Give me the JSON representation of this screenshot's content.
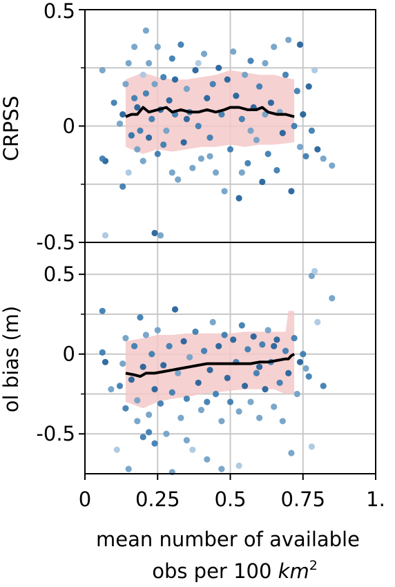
{
  "chart_data": [
    {
      "type": "scatter",
      "title": "",
      "ylabel": "CRPSS",
      "xlabel": "",
      "xlim": [
        0,
        1
      ],
      "ylim": [
        -0.5,
        0.5
      ],
      "y_ticks": [
        {
          "value": 0.5,
          "label": "0.5"
        },
        {
          "value": 0,
          "label": "0"
        },
        {
          "value": -0.5,
          "label": "-0.5"
        }
      ],
      "y_minor_ticks": [
        0.25,
        -0.25
      ],
      "grid": true,
      "band": {
        "x": [
          0.14,
          0.2,
          0.25,
          0.3,
          0.35,
          0.4,
          0.45,
          0.5,
          0.55,
          0.6,
          0.65,
          0.72
        ],
        "lower": [
          -0.09,
          -0.12,
          -0.1,
          -0.11,
          -0.1,
          -0.09,
          -0.09,
          -0.08,
          -0.09,
          -0.08,
          -0.08,
          -0.07
        ],
        "upper": [
          0.2,
          0.23,
          0.21,
          0.2,
          0.2,
          0.21,
          0.22,
          0.24,
          0.23,
          0.22,
          0.22,
          0.2
        ]
      },
      "median_line": {
        "x": [
          0.14,
          0.16,
          0.18,
          0.2,
          0.22,
          0.25,
          0.28,
          0.3,
          0.33,
          0.36,
          0.39,
          0.42,
          0.45,
          0.48,
          0.5,
          0.53,
          0.56,
          0.59,
          0.61,
          0.63,
          0.66,
          0.69,
          0.72
        ],
        "y": [
          0.04,
          0.05,
          0.05,
          0.08,
          0.06,
          0.07,
          0.08,
          0.06,
          0.07,
          0.06,
          0.06,
          0.07,
          0.06,
          0.07,
          0.08,
          0.08,
          0.07,
          0.07,
          0.08,
          0.06,
          0.05,
          0.05,
          0.04
        ]
      },
      "points": [
        {
          "x": 0.06,
          "y": 0.24,
          "s": 2
        },
        {
          "x": 0.07,
          "y": -0.15,
          "s": 4
        },
        {
          "x": 0.06,
          "y": -0.14,
          "s": 3
        },
        {
          "x": 0.07,
          "y": -0.47,
          "s": 1
        },
        {
          "x": 0.1,
          "y": 0.1,
          "s": 3
        },
        {
          "x": 0.12,
          "y": 0.01,
          "s": 2
        },
        {
          "x": 0.13,
          "y": -0.26,
          "s": 3
        },
        {
          "x": 0.13,
          "y": 0.05,
          "s": 4
        },
        {
          "x": 0.14,
          "y": 0.18,
          "s": 2
        },
        {
          "x": 0.15,
          "y": -0.2,
          "s": 1
        },
        {
          "x": 0.15,
          "y": 0.27,
          "s": 2
        },
        {
          "x": 0.16,
          "y": -0.04,
          "s": 4
        },
        {
          "x": 0.17,
          "y": 0.34,
          "s": 2
        },
        {
          "x": 0.17,
          "y": 0.12,
          "s": 3
        },
        {
          "x": 0.18,
          "y": -0.1,
          "s": 2
        },
        {
          "x": 0.18,
          "y": 0.08,
          "s": 4
        },
        {
          "x": 0.19,
          "y": -0.02,
          "s": 3
        },
        {
          "x": 0.2,
          "y": 0.22,
          "s": 1
        },
        {
          "x": 0.2,
          "y": -0.15,
          "s": 2
        },
        {
          "x": 0.21,
          "y": 0.41,
          "s": 2
        },
        {
          "x": 0.21,
          "y": 0.14,
          "s": 3
        },
        {
          "x": 0.22,
          "y": -0.05,
          "s": 4
        },
        {
          "x": 0.22,
          "y": 0.27,
          "s": 2
        },
        {
          "x": 0.23,
          "y": 0.03,
          "s": 3
        },
        {
          "x": 0.24,
          "y": -0.46,
          "s": 4
        },
        {
          "x": 0.24,
          "y": 0.18,
          "s": 2
        },
        {
          "x": 0.25,
          "y": -0.12,
          "s": 3
        },
        {
          "x": 0.25,
          "y": 0.34,
          "s": 2
        },
        {
          "x": 0.26,
          "y": 0.07,
          "s": 4
        },
        {
          "x": 0.26,
          "y": -0.47,
          "s": 2
        },
        {
          "x": 0.27,
          "y": 0.21,
          "s": 3
        },
        {
          "x": 0.28,
          "y": -0.02,
          "s": 2
        },
        {
          "x": 0.29,
          "y": 0.11,
          "s": 4
        },
        {
          "x": 0.3,
          "y": -0.2,
          "s": 2
        },
        {
          "x": 0.3,
          "y": 0.29,
          "s": 3
        },
        {
          "x": 0.31,
          "y": 0.05,
          "s": 3
        },
        {
          "x": 0.32,
          "y": -0.23,
          "s": 2
        },
        {
          "x": 0.33,
          "y": 0.35,
          "s": 3
        },
        {
          "x": 0.34,
          "y": -0.07,
          "s": 4
        },
        {
          "x": 0.35,
          "y": 0.16,
          "s": 2
        },
        {
          "x": 0.36,
          "y": 0.06,
          "s": 3
        },
        {
          "x": 0.37,
          "y": -0.18,
          "s": 2
        },
        {
          "x": 0.38,
          "y": 0.24,
          "s": 4
        },
        {
          "x": 0.39,
          "y": 0.0,
          "s": 3
        },
        {
          "x": 0.4,
          "y": -0.14,
          "s": 2
        },
        {
          "x": 0.41,
          "y": 0.31,
          "s": 2
        },
        {
          "x": 0.42,
          "y": 0.12,
          "s": 4
        },
        {
          "x": 0.43,
          "y": -0.05,
          "s": 3
        },
        {
          "x": 0.44,
          "y": 0.18,
          "s": 3
        },
        {
          "x": 0.45,
          "y": -0.2,
          "s": 2
        },
        {
          "x": 0.46,
          "y": 0.25,
          "s": 4
        },
        {
          "x": 0.47,
          "y": 0.05,
          "s": 3
        },
        {
          "x": 0.48,
          "y": -0.28,
          "s": 2
        },
        {
          "x": 0.49,
          "y": 0.2,
          "s": 4
        },
        {
          "x": 0.5,
          "y": -0.1,
          "s": 3
        },
        {
          "x": 0.51,
          "y": 0.32,
          "s": 2
        },
        {
          "x": 0.52,
          "y": 0.13,
          "s": 4
        },
        {
          "x": 0.53,
          "y": -0.31,
          "s": 4
        },
        {
          "x": 0.54,
          "y": 0.03,
          "s": 3
        },
        {
          "x": 0.55,
          "y": 0.22,
          "s": 2
        },
        {
          "x": 0.56,
          "y": -0.16,
          "s": 3
        },
        {
          "x": 0.57,
          "y": 0.28,
          "s": 3
        },
        {
          "x": 0.58,
          "y": 0.08,
          "s": 4
        },
        {
          "x": 0.59,
          "y": -0.06,
          "s": 2
        },
        {
          "x": 0.6,
          "y": 0.17,
          "s": 3
        },
        {
          "x": 0.61,
          "y": -0.24,
          "s": 4
        },
        {
          "x": 0.62,
          "y": 0.27,
          "s": 2
        },
        {
          "x": 0.63,
          "y": -0.12,
          "s": 3
        },
        {
          "x": 0.64,
          "y": 0.1,
          "s": 4
        },
        {
          "x": 0.65,
          "y": 0.34,
          "s": 2
        },
        {
          "x": 0.66,
          "y": -0.19,
          "s": 3
        },
        {
          "x": 0.67,
          "y": 0.06,
          "s": 2
        },
        {
          "x": 0.68,
          "y": -0.03,
          "s": 4
        },
        {
          "x": 0.69,
          "y": 0.22,
          "s": 3
        },
        {
          "x": 0.7,
          "y": 0.37,
          "s": 2
        },
        {
          "x": 0.71,
          "y": -0.28,
          "s": 4
        },
        {
          "x": 0.72,
          "y": 0.0,
          "s": 3
        },
        {
          "x": 0.73,
          "y": 0.15,
          "s": 3
        },
        {
          "x": 0.74,
          "y": -0.09,
          "s": 2
        },
        {
          "x": 0.75,
          "y": 0.05,
          "s": 4
        },
        {
          "x": 0.76,
          "y": -0.13,
          "s": 3
        },
        {
          "x": 0.77,
          "y": 0.17,
          "s": 4
        },
        {
          "x": 0.78,
          "y": -0.02,
          "s": 3
        },
        {
          "x": 0.79,
          "y": 0.24,
          "s": 1
        },
        {
          "x": 0.8,
          "y": -0.1,
          "s": 4
        },
        {
          "x": 0.82,
          "y": -0.14,
          "s": 2
        },
        {
          "x": 0.85,
          "y": -0.17,
          "s": 2
        },
        {
          "x": 0.74,
          "y": 0.35,
          "s": 4
        },
        {
          "x": 0.16,
          "y": -0.04,
          "s": 3
        },
        {
          "x": 0.43,
          "y": -0.13,
          "s": 2
        },
        {
          "x": 0.57,
          "y": -0.02,
          "s": 2
        },
        {
          "x": 0.35,
          "y": 0.03,
          "s": 4
        },
        {
          "x": 0.27,
          "y": -0.08,
          "s": 3
        },
        {
          "x": 0.62,
          "y": 0.05,
          "s": 2
        },
        {
          "x": 0.39,
          "y": 0.27,
          "s": 1
        },
        {
          "x": 0.54,
          "y": -0.2,
          "s": 2
        },
        {
          "x": 0.31,
          "y": 0.2,
          "s": 4
        }
      ]
    },
    {
      "type": "scatter",
      "title": "",
      "ylabel": "ol bias (m)",
      "xlabel": "mean number of available obs per 100 km²",
      "xlabel_lines": [
        "mean number of available",
        "obs per 100 ",
        "km",
        "2"
      ],
      "xlim": [
        0,
        1
      ],
      "ylim": [
        -0.75,
        0.7
      ],
      "x_ticks": [
        {
          "value": 0,
          "label": "0"
        },
        {
          "value": 0.25,
          "label": "0.25"
        },
        {
          "value": 0.5,
          "label": "0.5"
        },
        {
          "value": 0.75,
          "label": "0.75"
        },
        {
          "value": 1,
          "label": "1."
        }
      ],
      "y_ticks": [
        {
          "value": 0.5,
          "label": "0.5"
        },
        {
          "value": 0,
          "label": "0"
        },
        {
          "value": -0.5,
          "label": "-0.5"
        }
      ],
      "y_minor_ticks": [
        0.25,
        -0.25
      ],
      "grid": true,
      "band": {
        "x": [
          0.14,
          0.2,
          0.25,
          0.3,
          0.35,
          0.4,
          0.45,
          0.5,
          0.55,
          0.6,
          0.65,
          0.69,
          0.7,
          0.72
        ],
        "lower": [
          -0.3,
          -0.34,
          -0.3,
          -0.28,
          -0.27,
          -0.25,
          -0.24,
          -0.23,
          -0.22,
          -0.22,
          -0.22,
          -0.25,
          -0.25,
          -0.25
        ],
        "upper": [
          0.08,
          0.1,
          0.12,
          0.12,
          0.13,
          0.13,
          0.13,
          0.13,
          0.14,
          0.14,
          0.14,
          0.14,
          0.27,
          0.27
        ]
      },
      "median_line": {
        "x": [
          0.14,
          0.17,
          0.19,
          0.21,
          0.24,
          0.27,
          0.3,
          0.33,
          0.36,
          0.39,
          0.42,
          0.45,
          0.48,
          0.51,
          0.54,
          0.57,
          0.6,
          0.63,
          0.66,
          0.69,
          0.7,
          0.71,
          0.72
        ],
        "y": [
          -0.12,
          -0.13,
          -0.14,
          -0.12,
          -0.12,
          -0.11,
          -0.1,
          -0.09,
          -0.08,
          -0.07,
          -0.06,
          -0.06,
          -0.06,
          -0.06,
          -0.06,
          -0.06,
          -0.05,
          -0.05,
          -0.04,
          -0.03,
          -0.03,
          -0.01,
          0.0
        ]
      },
      "points": [
        {
          "x": 0.06,
          "y": 0.27,
          "s": 3
        },
        {
          "x": 0.06,
          "y": 0.01,
          "s": 3
        },
        {
          "x": 0.07,
          "y": -0.05,
          "s": 4
        },
        {
          "x": 0.09,
          "y": -0.22,
          "s": 2
        },
        {
          "x": 0.11,
          "y": -0.6,
          "s": 1
        },
        {
          "x": 0.12,
          "y": -0.2,
          "s": 3
        },
        {
          "x": 0.13,
          "y": -0.06,
          "s": 2
        },
        {
          "x": 0.14,
          "y": 0.1,
          "s": 2
        },
        {
          "x": 0.14,
          "y": -0.34,
          "s": 3
        },
        {
          "x": 0.15,
          "y": -0.72,
          "s": 2
        },
        {
          "x": 0.16,
          "y": -0.16,
          "s": 4
        },
        {
          "x": 0.17,
          "y": 0.05,
          "s": 3
        },
        {
          "x": 0.18,
          "y": -0.29,
          "s": 2
        },
        {
          "x": 0.19,
          "y": 0.23,
          "s": 3
        },
        {
          "x": 0.2,
          "y": -0.52,
          "s": 3
        },
        {
          "x": 0.2,
          "y": -0.08,
          "s": 4
        },
        {
          "x": 0.21,
          "y": 0.12,
          "s": 2
        },
        {
          "x": 0.22,
          "y": -0.38,
          "s": 2
        },
        {
          "x": 0.23,
          "y": 0.0,
          "s": 3
        },
        {
          "x": 0.24,
          "y": -0.22,
          "s": 4
        },
        {
          "x": 0.24,
          "y": -0.56,
          "s": 3
        },
        {
          "x": 0.25,
          "y": 0.15,
          "s": 2
        },
        {
          "x": 0.26,
          "y": -0.31,
          "s": 3
        },
        {
          "x": 0.27,
          "y": -0.07,
          "s": 4
        },
        {
          "x": 0.28,
          "y": -0.5,
          "s": 2
        },
        {
          "x": 0.29,
          "y": 0.05,
          "s": 3
        },
        {
          "x": 0.3,
          "y": -0.24,
          "s": 3
        },
        {
          "x": 0.31,
          "y": 0.28,
          "s": 4
        },
        {
          "x": 0.32,
          "y": -0.12,
          "s": 2
        },
        {
          "x": 0.33,
          "y": -0.4,
          "s": 2
        },
        {
          "x": 0.34,
          "y": 0.08,
          "s": 4
        },
        {
          "x": 0.35,
          "y": -0.28,
          "s": 3
        },
        {
          "x": 0.36,
          "y": -0.02,
          "s": 2
        },
        {
          "x": 0.37,
          "y": -0.6,
          "s": 1
        },
        {
          "x": 0.38,
          "y": 0.14,
          "s": 3
        },
        {
          "x": 0.39,
          "y": -0.18,
          "s": 4
        },
        {
          "x": 0.4,
          "y": -0.35,
          "s": 2
        },
        {
          "x": 0.41,
          "y": 0.02,
          "s": 3
        },
        {
          "x": 0.42,
          "y": -0.66,
          "s": 2
        },
        {
          "x": 0.43,
          "y": -0.1,
          "s": 4
        },
        {
          "x": 0.44,
          "y": 0.2,
          "s": 2
        },
        {
          "x": 0.45,
          "y": -0.25,
          "s": 3
        },
        {
          "x": 0.46,
          "y": 0.05,
          "s": 4
        },
        {
          "x": 0.47,
          "y": -0.42,
          "s": 2
        },
        {
          "x": 0.48,
          "y": 0.12,
          "s": 3
        },
        {
          "x": 0.49,
          "y": -0.15,
          "s": 4
        },
        {
          "x": 0.5,
          "y": -0.3,
          "s": 3
        },
        {
          "x": 0.51,
          "y": 0.09,
          "s": 4
        },
        {
          "x": 0.52,
          "y": -0.05,
          "s": 3
        },
        {
          "x": 0.53,
          "y": -0.36,
          "s": 2
        },
        {
          "x": 0.54,
          "y": 0.18,
          "s": 3
        },
        {
          "x": 0.55,
          "y": -0.2,
          "s": 4
        },
        {
          "x": 0.56,
          "y": 0.03,
          "s": 3
        },
        {
          "x": 0.57,
          "y": -0.3,
          "s": 2
        },
        {
          "x": 0.58,
          "y": 0.11,
          "s": 4
        },
        {
          "x": 0.59,
          "y": -0.12,
          "s": 3
        },
        {
          "x": 0.6,
          "y": -0.4,
          "s": 2
        },
        {
          "x": 0.61,
          "y": 0.06,
          "s": 3
        },
        {
          "x": 0.62,
          "y": -0.22,
          "s": 4
        },
        {
          "x": 0.63,
          "y": 0.15,
          "s": 2
        },
        {
          "x": 0.64,
          "y": -0.05,
          "s": 3
        },
        {
          "x": 0.65,
          "y": -0.33,
          "s": 2
        },
        {
          "x": 0.66,
          "y": 0.09,
          "s": 4
        },
        {
          "x": 0.67,
          "y": -0.18,
          "s": 3
        },
        {
          "x": 0.68,
          "y": -0.42,
          "s": 2
        },
        {
          "x": 0.69,
          "y": 0.02,
          "s": 3
        },
        {
          "x": 0.7,
          "y": -0.12,
          "s": 4
        },
        {
          "x": 0.71,
          "y": -0.62,
          "s": 2
        },
        {
          "x": 0.72,
          "y": 0.1,
          "s": 3
        },
        {
          "x": 0.73,
          "y": -0.25,
          "s": 2
        },
        {
          "x": 0.74,
          "y": -0.05,
          "s": 4
        },
        {
          "x": 0.75,
          "y": 0.0,
          "s": 3
        },
        {
          "x": 0.76,
          "y": -0.09,
          "s": 2
        },
        {
          "x": 0.77,
          "y": -0.14,
          "s": 3
        },
        {
          "x": 0.78,
          "y": 0.49,
          "s": 2
        },
        {
          "x": 0.78,
          "y": -0.58,
          "s": 1
        },
        {
          "x": 0.79,
          "y": 0.52,
          "s": 1
        },
        {
          "x": 0.8,
          "y": 0.2,
          "s": 1
        },
        {
          "x": 0.82,
          "y": -0.2,
          "s": 3
        },
        {
          "x": 0.85,
          "y": 0.35,
          "s": 2
        },
        {
          "x": 0.3,
          "y": -0.74,
          "s": 2
        },
        {
          "x": 0.47,
          "y": -0.72,
          "s": 2
        },
        {
          "x": 0.53,
          "y": -0.7,
          "s": 1
        },
        {
          "x": 0.22,
          "y": -0.49,
          "s": 3
        },
        {
          "x": 0.35,
          "y": -0.54,
          "s": 2
        },
        {
          "x": 0.6,
          "y": -0.08,
          "s": 4
        },
        {
          "x": 0.42,
          "y": -0.3,
          "s": 3
        },
        {
          "x": 0.18,
          "y": -0.42,
          "s": 2
        },
        {
          "x": 0.65,
          "y": 0.05,
          "s": 4
        }
      ]
    }
  ],
  "colors": {
    "band": "#f4c9c9",
    "median_line": "#000000",
    "grid": "#c8c8c8",
    "point_shades": [
      "#d6e6f2",
      "#a9c7df",
      "#6f9fc6",
      "#3a7bb0",
      "#1f5f99"
    ]
  }
}
